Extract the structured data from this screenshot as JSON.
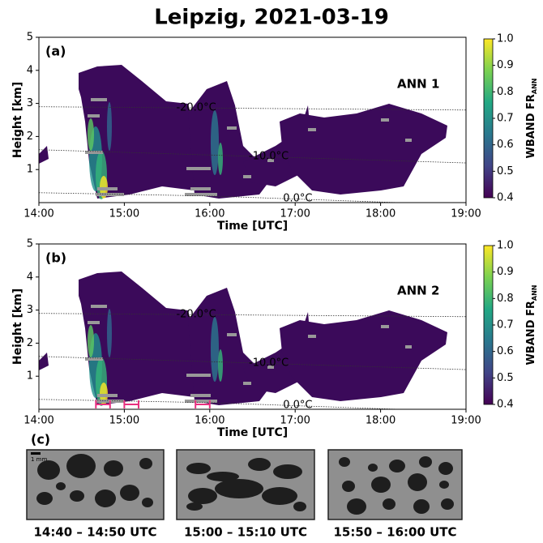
{
  "title": "Leipzig, 2021-03-19",
  "chart_data": [
    {
      "type": "heatmap",
      "panel_label": "(a)",
      "annotation": "ANN 1",
      "xlabel": "Time [UTC]",
      "ylabel": "Height [km]",
      "xlim": [
        14,
        19
      ],
      "xticks": [
        {
          "value": 14,
          "label": "14:00"
        },
        {
          "value": 15,
          "label": "15:00"
        },
        {
          "value": 16,
          "label": "16:00"
        },
        {
          "value": 17,
          "label": "17:00"
        },
        {
          "value": 18,
          "label": "18:00"
        },
        {
          "value": 19,
          "label": "19:00"
        }
      ],
      "ylim": [
        0,
        5
      ],
      "yticks": [
        1,
        2,
        3,
        4,
        5
      ],
      "colorbar_label": "WBAND FR",
      "colorbar_label_sub": "ANN",
      "clim": [
        0.4,
        1
      ],
      "cticks": [
        0.4,
        0.5,
        0.6,
        0.7,
        0.8,
        0.9,
        {
          "value": 1,
          "label": "1.0"
        }
      ],
      "isotherms": [
        {
          "label": "-20.0°C",
          "x": [
            14,
            19
          ],
          "y": [
            2.9,
            2.8
          ]
        },
        {
          "label": "-10.0°C",
          "x": [
            14,
            19
          ],
          "y": [
            1.6,
            1.2
          ]
        },
        {
          "label": "0.0°C",
          "x": [
            14,
            16,
            18.2
          ],
          "y": [
            0.3,
            0.2,
            0.0
          ]
        }
      ]
    },
    {
      "type": "heatmap",
      "panel_label": "(b)",
      "annotation": "ANN 2",
      "xlabel": "Time [UTC]",
      "ylabel": "Height [km]",
      "xlim": [
        14,
        19
      ],
      "xticks": [
        {
          "value": 14,
          "label": "14:00"
        },
        {
          "value": 15,
          "label": "15:00"
        },
        {
          "value": 16,
          "label": "16:00"
        },
        {
          "value": 17,
          "label": "17:00"
        },
        {
          "value": 18,
          "label": "18:00"
        },
        {
          "value": 19,
          "label": "19:00"
        }
      ],
      "ylim": [
        0,
        5
      ],
      "yticks": [
        1,
        2,
        3,
        4,
        5
      ],
      "colorbar_label": "WBAND FR",
      "colorbar_label_sub": "ANN",
      "clim": [
        0.4,
        1
      ],
      "cticks": [
        0.4,
        0.5,
        0.6,
        0.7,
        0.8,
        0.9,
        {
          "value": 1,
          "label": "1.0"
        }
      ],
      "isotherms": [
        {
          "label": "-20.0°C",
          "x": [
            14,
            19
          ],
          "y": [
            2.9,
            2.8
          ]
        },
        {
          "label": "-10.0°C",
          "x": [
            14,
            19
          ],
          "y": [
            1.6,
            1.2
          ]
        },
        {
          "label": "0.0°C",
          "x": [
            14,
            16,
            18.2
          ],
          "y": [
            0.3,
            0.2,
            0.0
          ]
        }
      ],
      "highlight_color": "#e8307f",
      "highlight_height": 0.05,
      "highlights": [
        {
          "start": 14.667,
          "end": 14.833
        },
        {
          "start": 15,
          "end": 15.167
        },
        {
          "start": 15.833,
          "end": 16
        }
      ]
    }
  ],
  "panel_c": {
    "panel_label": "(c)",
    "scale_label": "1 mm",
    "captions": [
      "14:40 – 14:50 UTC",
      "15:00 – 15:10 UTC",
      "15:50 – 16:00 UTC"
    ]
  }
}
